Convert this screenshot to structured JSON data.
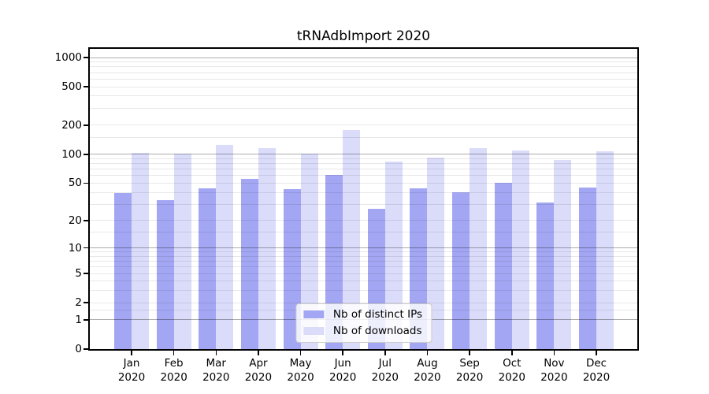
{
  "title": "tRNAdbImport 2020",
  "colors": {
    "ips_bar": "#a3a6f2",
    "downloads_bar": "#dadcfa",
    "major_gridline": "#b3b3b3",
    "minor_gridline": "#ececec",
    "axis": "#000000",
    "text": "#000000",
    "legend_border": "#cccccc",
    "legend_background": "#ffffff"
  },
  "y_axis": {
    "scale": "symlog",
    "tick_values": [
      0,
      1,
      2,
      5,
      10,
      20,
      50,
      100,
      200,
      500,
      1000
    ],
    "tick_labels": [
      "0",
      "1",
      "2",
      "5",
      "10",
      "20",
      "50",
      "100",
      "200",
      "500",
      "1000"
    ],
    "major_grid_values": [
      1,
      10,
      100,
      1000
    ],
    "minor_grid_subs": [
      1.5,
      2,
      3,
      4,
      5,
      6,
      7,
      8,
      9
    ],
    "max": 1000
  },
  "x_axis": {
    "months": [
      "Jan",
      "Feb",
      "Mar",
      "Apr",
      "May",
      "Jun",
      "Jul",
      "Aug",
      "Sep",
      "Oct",
      "Nov",
      "Dec"
    ],
    "year": "2020"
  },
  "legend": {
    "items": [
      {
        "label": "Nb of distinct IPs",
        "series": "ips_bar"
      },
      {
        "label": "Nb of downloads",
        "series": "downloads_bar"
      }
    ],
    "position": "lower center"
  },
  "chart_data": {
    "type": "bar",
    "title": "tRNAdbImport 2020",
    "categories": [
      "Jan 2020",
      "Feb 2020",
      "Mar 2020",
      "Apr 2020",
      "May 2020",
      "Jun 2020",
      "Jul 2020",
      "Aug 2020",
      "Sep 2020",
      "Oct 2020",
      "Nov 2020",
      "Dec 2020"
    ],
    "series": [
      {
        "name": "Nb of distinct IPs",
        "values": [
          39,
          33,
          44,
          56,
          43,
          61,
          27,
          44,
          40,
          50,
          31,
          45
        ]
      },
      {
        "name": "Nb of downloads",
        "values": [
          104,
          102,
          124,
          116,
          102,
          180,
          84,
          92,
          116,
          109,
          88,
          107
        ]
      }
    ],
    "xlabel": "",
    "ylabel": "",
    "yscale": "symlog",
    "ylim": [
      0,
      1000
    ],
    "yticks": [
      0,
      1,
      2,
      5,
      10,
      20,
      50,
      100,
      200,
      500,
      1000
    ],
    "grid": true,
    "legend_position": "lower center"
  }
}
